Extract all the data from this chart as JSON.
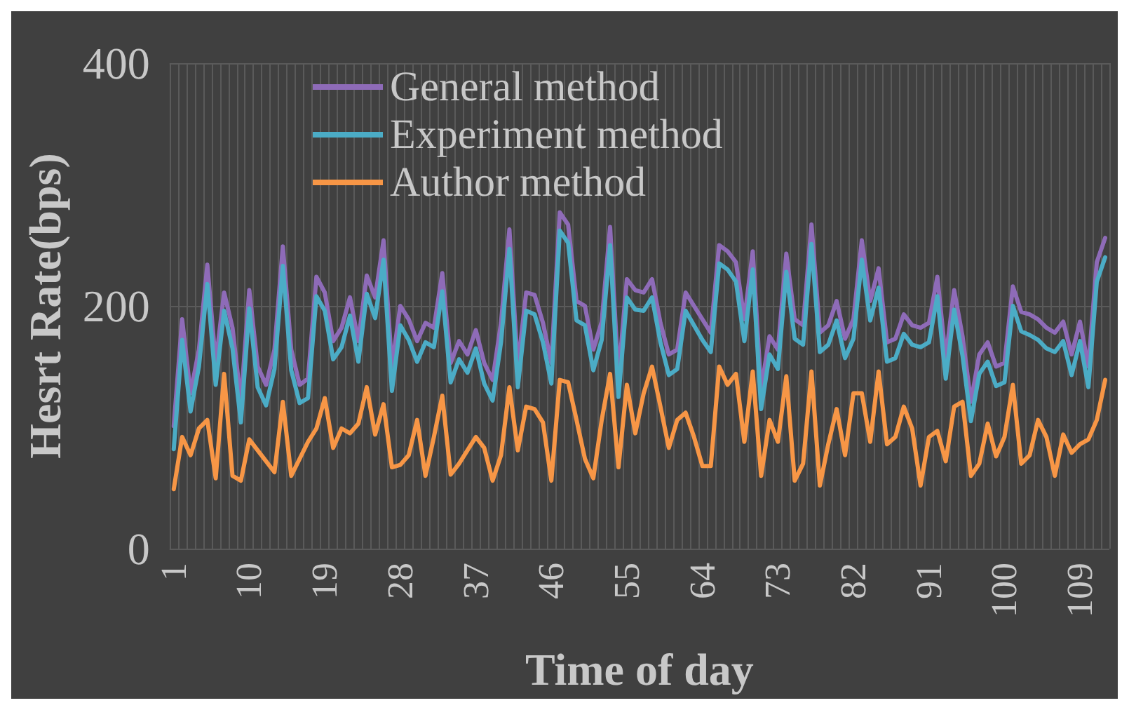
{
  "chart_data": {
    "type": "line",
    "xlabel": "Time of day",
    "ylabel": "Hesrt Rate(bps)",
    "categories": [
      "1",
      null,
      null,
      null,
      null,
      null,
      null,
      null,
      null,
      "10",
      null,
      null,
      null,
      null,
      null,
      null,
      null,
      null,
      "19",
      null,
      null,
      null,
      null,
      null,
      null,
      null,
      null,
      "28",
      null,
      null,
      null,
      null,
      null,
      null,
      null,
      null,
      "37",
      null,
      null,
      null,
      null,
      null,
      null,
      null,
      null,
      "46",
      null,
      null,
      null,
      null,
      null,
      null,
      null,
      null,
      "55",
      null,
      null,
      null,
      null,
      null,
      null,
      null,
      null,
      "64",
      null,
      null,
      null,
      null,
      null,
      null,
      null,
      null,
      "73",
      null,
      null,
      null,
      null,
      null,
      null,
      null,
      null,
      "82",
      null,
      null,
      null,
      null,
      null,
      null,
      null,
      null,
      "91",
      null,
      null,
      null,
      null,
      null,
      null,
      null,
      null,
      "100",
      null,
      null,
      null,
      null,
      null,
      null,
      null,
      null,
      "109",
      null,
      null,
      null
    ],
    "series": [
      {
        "name": "General method",
        "color": "#8e6bb8",
        "values": [
          101,
          189,
          128,
          164,
          234,
          153,
          211,
          182,
          121,
          213,
          150,
          135,
          164,
          249,
          164,
          135,
          140,
          224,
          211,
          171,
          182,
          207,
          171,
          225,
          207,
          254,
          150,
          200,
          189,
          171,
          186,
          182,
          227,
          153,
          171,
          160,
          180,
          153,
          139,
          186,
          263,
          150,
          211,
          209,
          186,
          153,
          277,
          267,
          204,
          200,
          164,
          187,
          265,
          142,
          222,
          213,
          211,
          222,
          186,
          160,
          164,
          211,
          200,
          189,
          178,
          250,
          245,
          236,
          189,
          245,
          131,
          175,
          164,
          243,
          189,
          184,
          267,
          178,
          184,
          204,
          173,
          189,
          254,
          204,
          231,
          170,
          173,
          193,
          184,
          182,
          186,
          224,
          157,
          213,
          175,
          121,
          160,
          170,
          150,
          153,
          216,
          195,
          193,
          189,
          182,
          178,
          187,
          160,
          187,
          150,
          236,
          256
        ]
      },
      {
        "name": "Experiment method",
        "color": "#4bacc6",
        "values": [
          82,
          172,
          113,
          150,
          218,
          135,
          196,
          165,
          104,
          198,
          133,
          118,
          148,
          233,
          147,
          120,
          124,
          208,
          196,
          156,
          166,
          192,
          154,
          210,
          190,
          238,
          130,
          184,
          172,
          154,
          170,
          166,
          212,
          137,
          156,
          145,
          165,
          136,
          122,
          170,
          247,
          133,
          196,
          193,
          170,
          136,
          262,
          252,
          188,
          184,
          147,
          172,
          250,
          125,
          207,
          197,
          196,
          207,
          170,
          143,
          148,
          196,
          184,
          172,
          162,
          235,
          230,
          220,
          171,
          230,
          115,
          160,
          148,
          228,
          173,
          168,
          251,
          162,
          168,
          188,
          157,
          173,
          238,
          188,
          215,
          154,
          157,
          177,
          168,
          166,
          170,
          208,
          140,
          197,
          159,
          105,
          144,
          154,
          134,
          137,
          200,
          179,
          176,
          172,
          165,
          162,
          171,
          143,
          171,
          133,
          220,
          240
        ]
      },
      {
        "name": "Author method",
        "color": "#f79646",
        "values": [
          49,
          92,
          77,
          99,
          106,
          58,
          144,
          60,
          56,
          90,
          81,
          72,
          63,
          121,
          60,
          74,
          88,
          99,
          124,
          83,
          99,
          95,
          103,
          133,
          94,
          119,
          67,
          69,
          77,
          106,
          60,
          92,
          126,
          61,
          70,
          81,
          92,
          83,
          56,
          77,
          133,
          81,
          117,
          115,
          104,
          56,
          139,
          137,
          106,
          74,
          58,
          106,
          144,
          67,
          135,
          95,
          128,
          150,
          117,
          83,
          106,
          112,
          92,
          68,
          68,
          150,
          135,
          144,
          88,
          146,
          60,
          106,
          88,
          142,
          56,
          70,
          146,
          52,
          86,
          115,
          77,
          128,
          128,
          88,
          146,
          86,
          92,
          117,
          99,
          52,
          92,
          97,
          72,
          117,
          121,
          60,
          70,
          103,
          76,
          92,
          135,
          70,
          77,
          106,
          92,
          60,
          94,
          79,
          86,
          90,
          106,
          139
        ]
      }
    ],
    "ylim": [
      0,
      400
    ],
    "yticks": [
      0,
      200,
      400
    ],
    "grid": true,
    "legend": "top left",
    "marker": "none",
    "line_style": "solid"
  }
}
